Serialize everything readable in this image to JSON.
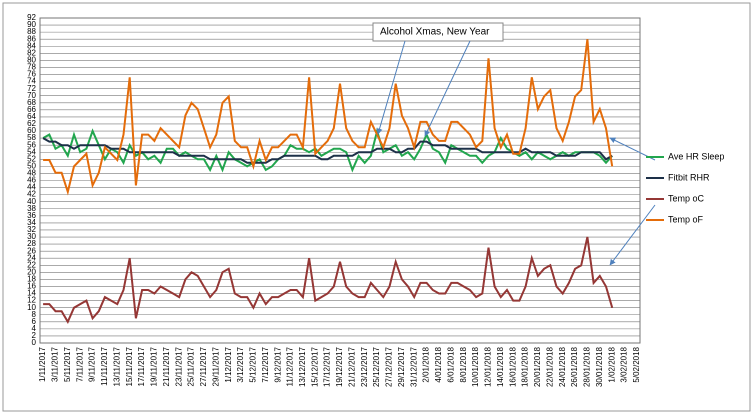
{
  "chart_data": {
    "type": "line",
    "annotation": "Alcohol  Xmas, New Year",
    "categories": [
      "1/11/2017",
      null,
      "3/11/2017",
      null,
      "5/11/2017",
      null,
      "7/11/2017",
      null,
      "9/11/2017",
      null,
      "11/11/2017",
      null,
      "13/11/2017",
      null,
      "15/11/2017",
      null,
      "17/11/2017",
      null,
      "19/11/2017",
      null,
      "21/11/2017",
      null,
      "23/11/2017",
      null,
      "25/11/2017",
      null,
      "27/11/2017",
      null,
      "29/11/2017",
      null,
      "1/12/2017",
      null,
      "3/12/2017",
      null,
      "5/12/2017",
      null,
      "7/12/2017",
      null,
      "9/12/2017",
      null,
      "11/12/2017",
      null,
      "13/12/2017",
      null,
      "15/12/2017",
      null,
      "17/12/2017",
      null,
      "19/12/2017",
      null,
      "21/12/2017",
      null,
      "23/12/2017",
      null,
      "25/12/2017",
      null,
      "27/12/2017",
      null,
      "29/12/2017",
      null,
      "31/12/2017",
      null,
      "2/01/2018",
      null,
      "4/01/2018",
      null,
      "6/01/2018",
      null,
      "8/01/2018",
      null,
      "10/01/2018",
      null,
      "12/01/2018",
      null,
      "14/01/2018",
      null,
      "16/01/2018",
      null,
      "18/01/2018",
      null,
      "20/01/2018",
      null,
      "22/01/2018",
      null,
      "24/01/2018",
      null,
      "26/01/2018",
      null,
      "28/01/2018",
      null,
      "30/01/2018",
      null,
      "1/02/2018",
      null,
      "3/02/2018",
      null,
      "5/02/2018"
    ],
    "series": [
      {
        "name": "Ave HR Sleep",
        "color": "#22a64e",
        "values": [
          58,
          59,
          55,
          56,
          53,
          59,
          54,
          55,
          60,
          56,
          52,
          55,
          54,
          51,
          56,
          53,
          54,
          52,
          53,
          51,
          55,
          55,
          53,
          54,
          53,
          52,
          52,
          49,
          53,
          49,
          54,
          52,
          51,
          50,
          51,
          52,
          49,
          50,
          52,
          53,
          56,
          55,
          55,
          54,
          55,
          53,
          54,
          55,
          55,
          54,
          49,
          53,
          51,
          53,
          60,
          54,
          55,
          56,
          53,
          54,
          52,
          55,
          59,
          55,
          54,
          51,
          56,
          55,
          54,
          53,
          53,
          51,
          53,
          54,
          58,
          55,
          54,
          53,
          54,
          52,
          54,
          53,
          52,
          53,
          54,
          53,
          54,
          54,
          54,
          54,
          53,
          51,
          53,
          null,
          null,
          null,
          null
        ]
      },
      {
        "name": "Fitbit RHR",
        "color": "#1d3048",
        "values": [
          58,
          57,
          57,
          56,
          56,
          55,
          56,
          56,
          56,
          56,
          56,
          55,
          55,
          55,
          54,
          54,
          54,
          54,
          54,
          54,
          54,
          54,
          53,
          53,
          53,
          53,
          53,
          52,
          52,
          52,
          52,
          52,
          52,
          51,
          51,
          51,
          51,
          52,
          52,
          53,
          53,
          53,
          53,
          53,
          53,
          52,
          52,
          53,
          53,
          53,
          53,
          54,
          54,
          54,
          55,
          55,
          55,
          54,
          54,
          55,
          55,
          57,
          57,
          56,
          56,
          56,
          55,
          55,
          55,
          55,
          55,
          54,
          54,
          54,
          54,
          54,
          54,
          54,
          55,
          54,
          54,
          54,
          54,
          53,
          53,
          53,
          53,
          54,
          54,
          54,
          54,
          52,
          53,
          null,
          null,
          null,
          null
        ]
      },
      {
        "name": "Temp oC",
        "color": "#953735",
        "values": [
          11,
          11,
          9,
          9,
          6,
          10,
          11,
          12,
          7,
          9,
          13,
          12,
          11,
          15,
          24,
          7,
          15,
          15,
          14,
          16,
          15,
          14,
          13,
          18,
          20,
          19,
          16,
          13,
          15,
          20,
          21,
          14,
          13,
          13,
          10,
          14,
          11,
          13,
          13,
          14,
          15,
          15,
          13,
          24,
          12,
          13,
          14,
          16,
          23,
          16,
          14,
          13,
          13,
          17,
          15,
          13,
          16,
          23,
          18,
          16,
          13,
          17,
          17,
          15,
          14,
          14,
          17,
          17,
          16,
          15,
          13,
          14,
          27,
          16,
          13,
          15,
          12,
          12,
          16,
          24,
          19,
          21,
          22,
          16,
          14,
          17,
          21,
          22,
          30,
          17,
          19,
          16,
          10,
          null,
          null,
          null,
          null
        ]
      },
      {
        "name": "Temp oF",
        "color": "#e46c0a",
        "values": [
          51.8,
          51.8,
          48.2,
          48.2,
          42.8,
          50,
          51.8,
          53.6,
          44.6,
          48.2,
          55.4,
          53.6,
          51.8,
          59,
          75.2,
          44.6,
          59,
          59,
          57.2,
          60.8,
          59,
          57.2,
          55.4,
          64.4,
          68,
          66.2,
          60.8,
          55.4,
          59,
          68,
          69.8,
          57.2,
          55.4,
          55.4,
          50,
          57.2,
          51.8,
          55.4,
          55.4,
          57.2,
          59,
          59,
          55.4,
          75.2,
          53.6,
          55.4,
          57.2,
          60.8,
          73.4,
          60.8,
          57.2,
          55.4,
          55.4,
          62.6,
          59,
          55.4,
          60.8,
          73.4,
          64.4,
          60.8,
          55.4,
          62.6,
          62.6,
          59,
          57.2,
          57.2,
          62.6,
          62.6,
          60.8,
          59,
          55.4,
          57.2,
          80.6,
          60.8,
          55.4,
          59,
          53.6,
          53.6,
          60.8,
          75.2,
          66.2,
          69.8,
          71.6,
          60.8,
          57.2,
          62.6,
          69.8,
          71.6,
          86,
          62.6,
          66.2,
          60.8,
          50,
          null,
          null,
          null,
          null
        ]
      }
    ],
    "ylim": [
      0,
      92
    ],
    "yticks": [
      0,
      2,
      4,
      6,
      8,
      10,
      12,
      14,
      16,
      18,
      20,
      22,
      24,
      26,
      28,
      30,
      32,
      34,
      36,
      38,
      40,
      42,
      44,
      46,
      48,
      50,
      52,
      54,
      56,
      58,
      60,
      62,
      64,
      66,
      68,
      70,
      72,
      74,
      76,
      78,
      80,
      82,
      84,
      86,
      88,
      90,
      92
    ],
    "grid": true,
    "legend": "right"
  }
}
